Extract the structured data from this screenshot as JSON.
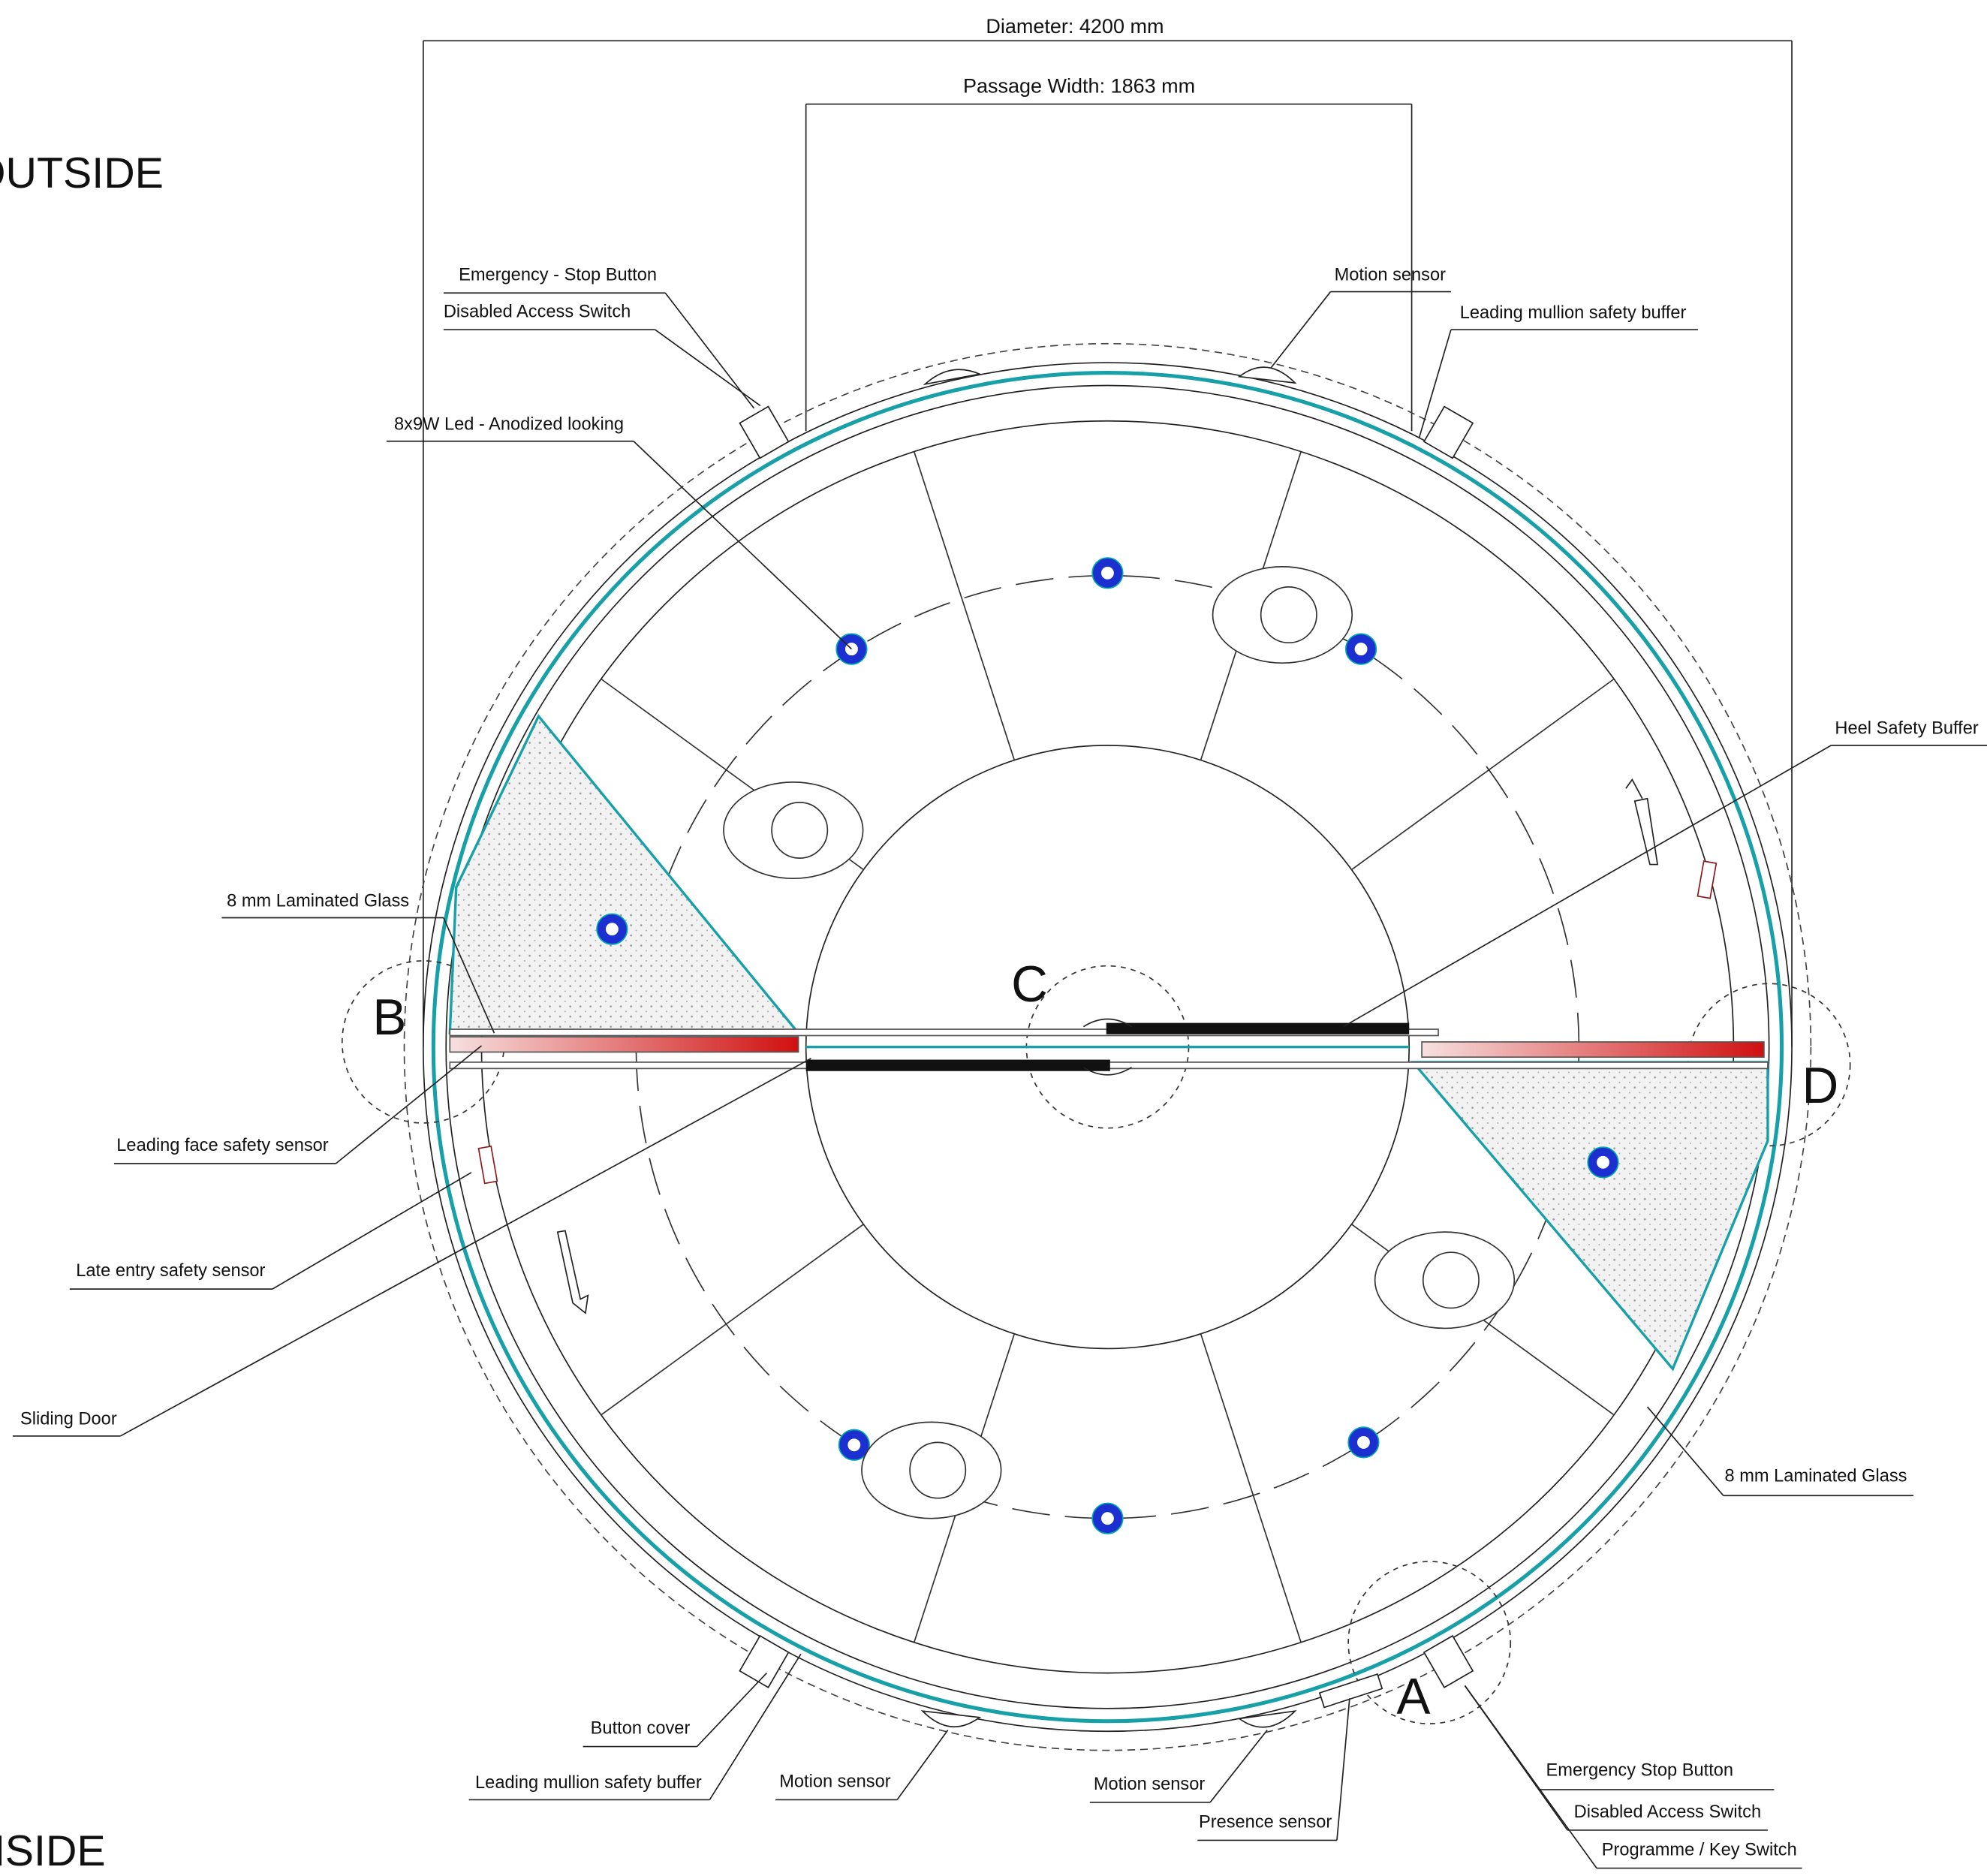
{
  "dimensions": {
    "diameter": "Diameter: 4200 mm",
    "passage_width": "Passage Width: 1863 mm"
  },
  "zones": {
    "outside": "OUTSIDE",
    "inside": "INSIDE"
  },
  "sections": {
    "A": "A",
    "B": "B",
    "C": "C",
    "D": "D"
  },
  "callouts": [
    "Emergency - Stop Button",
    "Disabled Access Switch",
    "8x9W Led - Anodized looking",
    "Motion sensor",
    "Leading mullion safety buffer",
    "Heel Safety Buffer",
    "8 mm Laminated Glass",
    "Leading face safety sensor",
    "Late entry safety sensor",
    "Sliding Door",
    "8 mm Laminated Glass",
    "Button cover",
    "Leading mullion safety buffer",
    "Motion sensor",
    "Motion sensor",
    "Presence sensor",
    "Emergency Stop Button",
    "Disabled Access Switch",
    "Programme / Key Switch"
  ]
}
